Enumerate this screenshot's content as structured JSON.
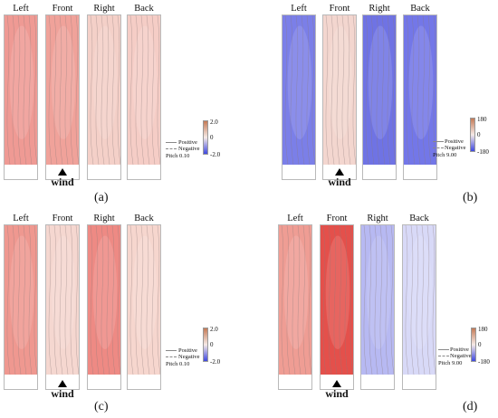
{
  "panels": [
    {
      "id": "a",
      "label": "(a)",
      "faces": [
        "Left",
        "Front",
        "Right",
        "Back"
      ],
      "scale": {
        "max": "2.0",
        "mid": "0",
        "min": "-2.0"
      },
      "legend": {
        "positive": "Positive",
        "negative": "Negative",
        "pitch": "Pitch  0.10"
      },
      "wind": "wind",
      "face_fill": [
        "#ef9a94",
        "#f0a29a",
        "#f4d0c8",
        "#f5cdc6"
      ]
    },
    {
      "id": "b",
      "label": "(b)",
      "faces": [
        "Left",
        "Front",
        "Right",
        "Back"
      ],
      "scale": {
        "max": "180",
        "mid": "0",
        "min": "-180"
      },
      "legend": {
        "positive": "Positive",
        "negative": "Negative",
        "pitch": "Pitch  9.00"
      },
      "wind": "wind",
      "face_fill": [
        "#7b7fe8",
        "#f3d6cf",
        "#6f73e4",
        "#7377e8"
      ]
    },
    {
      "id": "c",
      "label": "(c)",
      "faces": [
        "Left",
        "Front",
        "Right",
        "Back"
      ],
      "scale": {
        "max": "2.0",
        "mid": "0",
        "min": "-2.0"
      },
      "legend": {
        "positive": "Positive",
        "negative": "Negative",
        "pitch": "Pitch  0.10"
      },
      "wind": "wind",
      "face_fill": [
        "#ef9890",
        "#f5d7d0",
        "#ee8a84",
        "#f6d6ce"
      ]
    },
    {
      "id": "d",
      "label": "(d)",
      "faces": [
        "Left",
        "Front",
        "Right",
        "Back"
      ],
      "scale": {
        "max": "180",
        "mid": "0",
        "min": "-180"
      },
      "legend": {
        "positive": "Positive",
        "negative": "Negative",
        "pitch": "Pitch  9.00"
      },
      "wind": "wind",
      "face_fill": [
        "#ef9d94",
        "#e4504b",
        "#b7b9f2",
        "#d8d9f7"
      ]
    }
  ],
  "colors": {
    "positive_high": "#e3403e",
    "neutral": "#f6ece8",
    "negative_high": "#3f49e0"
  }
}
